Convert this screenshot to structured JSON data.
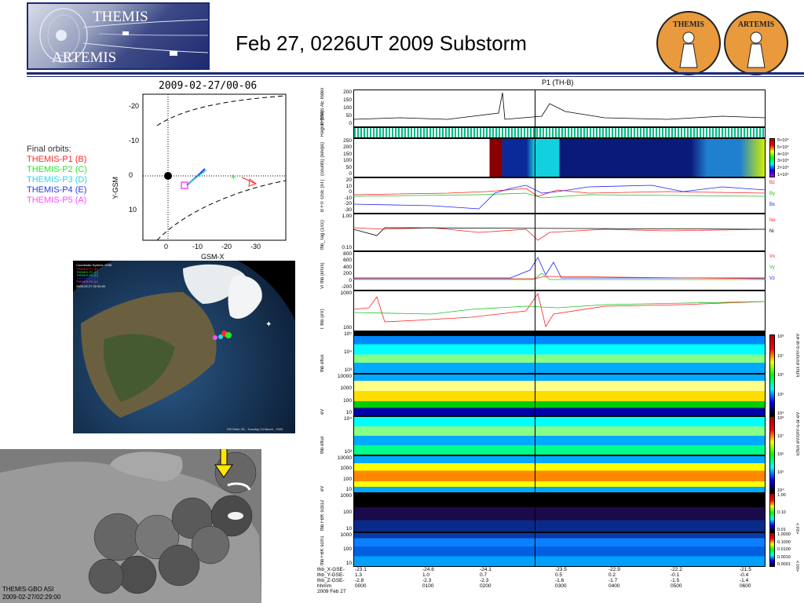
{
  "header": {
    "logo_line1": "THEMIS",
    "logo_line2": "ARTEMIS",
    "title": "Feb 27, 0226UT 2009 Substorm",
    "badge_left": "THEMIS",
    "badge_right": "ARTEMIS"
  },
  "orbit": {
    "title": "2009-02-27/00-06",
    "xlabel": "GSM-X",
    "ylabel": "Y-GSM",
    "xticks": [
      "0",
      "-10",
      "-20",
      "-30"
    ],
    "yticks": [
      "-20",
      "-10",
      "0",
      "10"
    ],
    "legend_title": "Final orbits:",
    "legend": [
      {
        "label": "THEMIS-P1 (B)",
        "color": "#ff2a2a"
      },
      {
        "label": "THEMIS-P2 (C)",
        "color": "#29e829"
      },
      {
        "label": "THEMIS-P3 (D)",
        "color": "#2ad7e8"
      },
      {
        "label": "THEMIS-P4 (E)",
        "color": "#2a3ad8"
      },
      {
        "label": "THEMIS-P5 (A)",
        "color": "#ff4dff"
      }
    ]
  },
  "globe": {
    "caption_top": "Coordinate System: GSM",
    "caption_time": "2009-02-27 02:30:00",
    "caption_bottom": "SSCWeb 3D - Tuesday 24 March , 2009",
    "mini_legend": [
      "THEMIS-P1 (B)",
      "THEMIS-P2 (C)",
      "THEMIS-P3 (D)",
      "THEMIS-P4 (E)",
      "THEMIS-P5 (A)"
    ]
  },
  "asi": {
    "label": "THEMIS-GBO ASI",
    "time": "2009-02-27/02:29:00"
  },
  "plot": {
    "title": "P1 (TH-B)",
    "panels": [
      {
        "ylabel": "THEMIS AE Index",
        "ticks": [
          "200",
          "150",
          "100",
          "50",
          "0"
        ]
      },
      {
        "ylabel": "Region (tha)",
        "ticks": []
      },
      {
        "ylabel": "(counts) (kevps)",
        "ticks": [
          "250",
          "200",
          "150",
          "100",
          "50",
          "0"
        ]
      },
      {
        "ylabel": "B FIT GSE (nT)",
        "ticks": [
          "20",
          "10",
          "0",
          "-10",
          "-20",
          "-30"
        ]
      },
      {
        "ylabel": "thb_Tag (1/cc)",
        "ticks": [
          "1.00",
          "0.10"
        ]
      },
      {
        "ylabel": "Vi thb (km/s)",
        "ticks": [
          "800",
          "600",
          "400",
          "200",
          "0",
          "-200"
        ]
      },
      {
        "ylabel": "T thb (eV)",
        "ticks": [
          "1000",
          "100"
        ]
      },
      {
        "ylabel": "thb eflux",
        "ticks": [
          "10⁵",
          "10⁴",
          "10³"
        ]
      },
      {
        "ylabel": "eV",
        "ticks": [
          "10000",
          "1000",
          "100",
          "10"
        ]
      },
      {
        "ylabel": "thb eflux",
        "ticks": [
          "10⁴",
          "10³"
        ]
      },
      {
        "ylabel": "eV",
        "ticks": [
          "10000",
          "1000",
          "100",
          "10"
        ]
      },
      {
        "ylabel": "thb FBK scb12",
        "ticks": [
          "1000",
          "100",
          "10"
        ]
      },
      {
        "ylabel": "thb FBK scm1",
        "ticks": [
          "1000",
          "100",
          "10"
        ]
      }
    ],
    "side_labels_b": [
      "Bz",
      "By",
      "Bx"
    ],
    "side_labels_n": [
      "Ne",
      "Ni"
    ],
    "side_labels_v": [
      "Vx",
      "Vy",
      "Vz"
    ],
    "cbar_spec1": [
      "5×10⁴",
      "5×10⁴",
      "4×10⁴",
      "3×10⁴",
      "2×10⁴",
      "1×10⁴"
    ],
    "cbar_eflux1": [
      "10⁸",
      "10⁷",
      "10⁶",
      "10⁵",
      "10⁴"
    ],
    "cbar_eflux2": [
      "10⁸",
      "10⁷",
      "10⁶",
      "10⁵",
      "10⁴"
    ],
    "cbar_fbk1": [
      "1.00",
      "0.10",
      "0.01"
    ],
    "cbar_fbk2": [
      "1.0000",
      "0.1000",
      "0.0100",
      "0.0010",
      "0.0001"
    ],
    "cbar_unit_eflux": "Eflux eV/cm²-s-sr-eV",
    "cbar_unit_fbk": "<nT>",
    "row_labels": [
      "thb_X-GSE-",
      "thb_Y-GSE-",
      "thb_Z-GSE-",
      "hhmm",
      "2009 Feb 27"
    ],
    "time_cols": [
      {
        "v": [
          "-23.1",
          "1.3",
          "-2.8",
          "0000"
        ]
      },
      {
        "v": [
          "-24.6",
          "1.0",
          "-2.3",
          "0100"
        ]
      },
      {
        "v": [
          "-24.1",
          "0.7",
          "-2.3",
          "0200"
        ]
      },
      {
        "v": [
          "-23.5",
          "0.5",
          "-1.6",
          "0300"
        ]
      },
      {
        "v": [
          "-22.9",
          "0.2",
          "-1.7",
          "0400"
        ]
      },
      {
        "v": [
          "-22.2",
          "-0.1",
          "-1.5",
          "0500"
        ]
      },
      {
        "v": [
          "-21.5",
          "-0.4",
          "-1.4",
          "0600"
        ]
      }
    ]
  },
  "colors": {
    "accent": "#1b2a78",
    "title": "#000000",
    "arrow": "#ffe600"
  }
}
